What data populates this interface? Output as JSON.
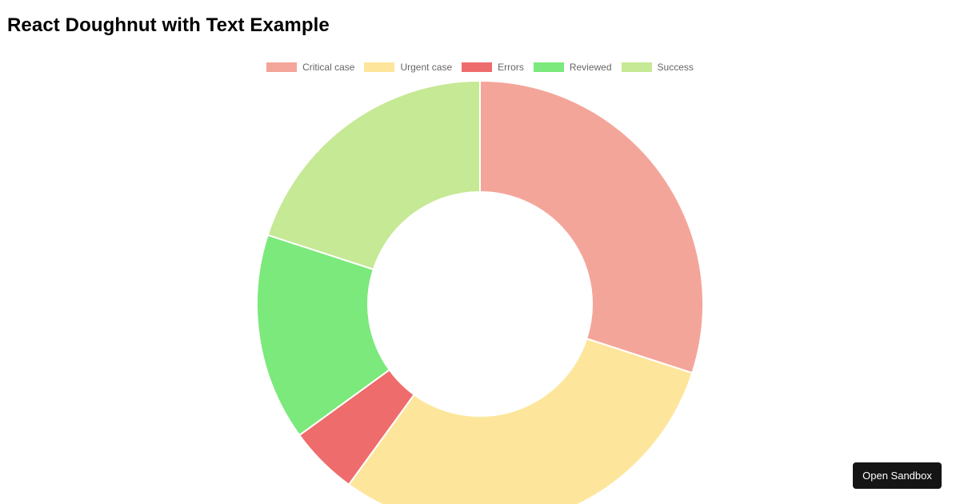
{
  "page": {
    "title": "React Doughnut with Text Example"
  },
  "sandbox_button": {
    "label": "Open Sandbox"
  },
  "chart_data": {
    "type": "pie",
    "variant": "doughnut",
    "title": "",
    "legend_position": "top",
    "categories": [
      "Critical case",
      "Urgent case",
      "Errors",
      "Reviewed",
      "Success"
    ],
    "values": [
      30,
      30,
      5,
      15,
      20
    ],
    "colors": [
      "#F4A59A",
      "#FDE69C",
      "#EE6C6C",
      "#7BE97B",
      "#C5E994"
    ],
    "series": [
      {
        "values": [
          30,
          30,
          5,
          15,
          20
        ]
      }
    ]
  }
}
